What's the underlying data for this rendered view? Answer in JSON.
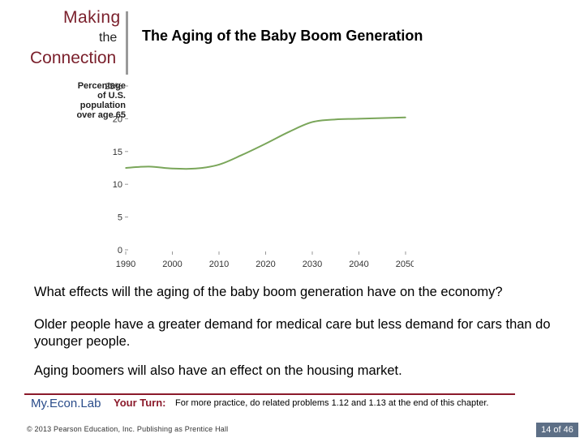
{
  "header": {
    "logo_making": "Making",
    "logo_the": "the",
    "logo_connection": "Connection",
    "title": "The Aging of the Baby Boom Generation"
  },
  "chart_data": {
    "type": "line",
    "ylabel_lines": [
      "Percentage",
      "of U.S.",
      "population",
      "over age 65"
    ],
    "xlabel": "",
    "x": [
      1990,
      1995,
      2000,
      2005,
      2010,
      2015,
      2020,
      2025,
      2030,
      2035,
      2040,
      2050
    ],
    "series": [
      {
        "values": [
          12.5,
          12.7,
          12.4,
          12.4,
          13.0,
          14.5,
          16.2,
          18.0,
          19.5,
          19.9,
          20.0,
          20.2
        ]
      }
    ],
    "xticks": [
      "1990",
      "2000",
      "2010",
      "2020",
      "2030",
      "2040",
      "2050"
    ],
    "yticks": [
      "0",
      "5",
      "10",
      "15",
      "20",
      "25%"
    ],
    "xlim": [
      1990,
      2050
    ],
    "ylim": [
      0,
      25
    ],
    "line_color": "#7aa65a",
    "grid": false
  },
  "body": {
    "question": "What effects will the aging of the baby boom generation have on the economy?",
    "answer1": "Older people have a greater demand for medical care but less demand for cars than do younger people.",
    "answer2": "Aging boomers will also have an effect on the housing market."
  },
  "footer": {
    "myeconlab": "My.Econ.Lab",
    "your_turn_label": "Your Turn:",
    "your_turn_text": "For more practice, do related problems 1.12 and 1.13 at the end of this chapter.",
    "copyright": "© 2013 Pearson Education, Inc. Publishing as Prentice Hall",
    "page": "14 of 46"
  },
  "colors": {
    "accent": "#8b1a2b",
    "logo_text": "#7a1f2b",
    "myeconlab": "#2a4c8a",
    "page_badge": "#5d6f86"
  }
}
